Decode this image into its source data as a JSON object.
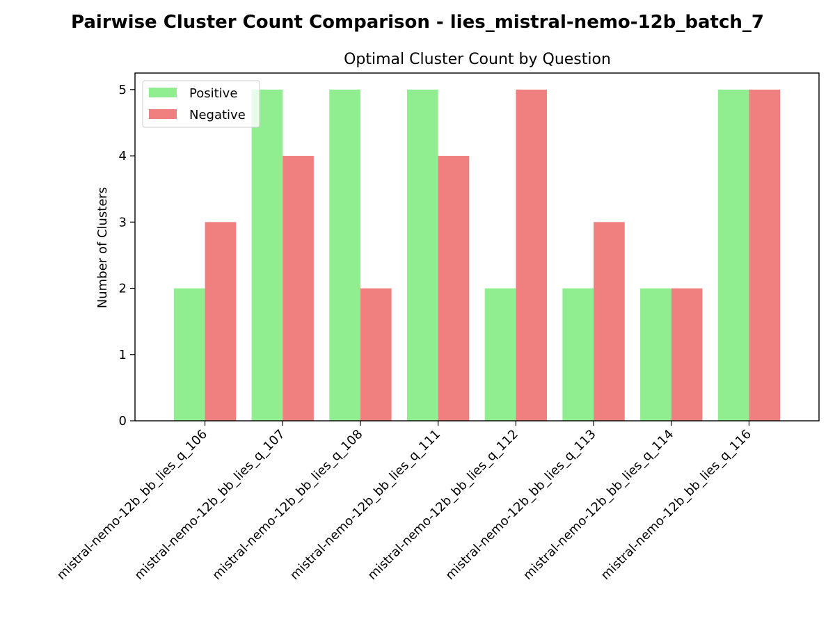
{
  "figure": {
    "title": "Pairwise Cluster Count Comparison - lies_mistral-nemo-12b_batch_7"
  },
  "chart_data": {
    "type": "bar",
    "title": "Optimal Cluster Count by Question",
    "xlabel": "",
    "ylabel": "Number of Clusters",
    "categories": [
      "mistral-nemo-12b_bb_lies_q_106",
      "mistral-nemo-12b_bb_lies_q_107",
      "mistral-nemo-12b_bb_lies_q_108",
      "mistral-nemo-12b_bb_lies_q_111",
      "mistral-nemo-12b_bb_lies_q_112",
      "mistral-nemo-12b_bb_lies_q_113",
      "mistral-nemo-12b_bb_lies_q_114",
      "mistral-nemo-12b_bb_lies_q_116"
    ],
    "series": [
      {
        "name": "Positive",
        "color": "#90ee90",
        "values": [
          2,
          5,
          5,
          5,
          2,
          2,
          2,
          5
        ]
      },
      {
        "name": "Negative",
        "color": "#f08080",
        "values": [
          3,
          4,
          2,
          4,
          5,
          3,
          2,
          5
        ]
      }
    ],
    "ylim": [
      0,
      5.25
    ],
    "yticks": [
      0,
      1,
      2,
      3,
      4,
      5
    ],
    "legend_position": "top-left",
    "grid": false
  }
}
